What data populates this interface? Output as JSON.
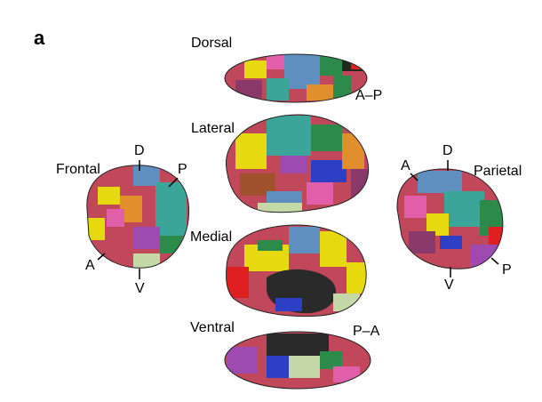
{
  "figure": {
    "panel_label": "a",
    "views": {
      "dorsal": "Dorsal",
      "lateral": "Lateral",
      "frontal": "Frontal",
      "parietal": "Parietal",
      "medial": "Medial",
      "ventral": "Ventral"
    },
    "orientation": {
      "dorsal_ap": "A–P",
      "frontal_d": "D",
      "frontal_p": "P",
      "frontal_a": "A",
      "frontal_v": "V",
      "parietal_d": "D",
      "parietal_a": "A",
      "parietal_p": "P",
      "parietal_v": "V",
      "ventral_pa": "P–A"
    },
    "palette": [
      "#c0485a",
      "#5f8fbf",
      "#3aa598",
      "#e6d90f",
      "#9e4ab0",
      "#2c8a4a",
      "#e08f2c",
      "#e05fa8",
      "#2d3fc4",
      "#c4d8a8",
      "#1f2a1f",
      "#e02020",
      "#a0522d",
      "#8a3a6a",
      "#2a2a2a"
    ]
  }
}
